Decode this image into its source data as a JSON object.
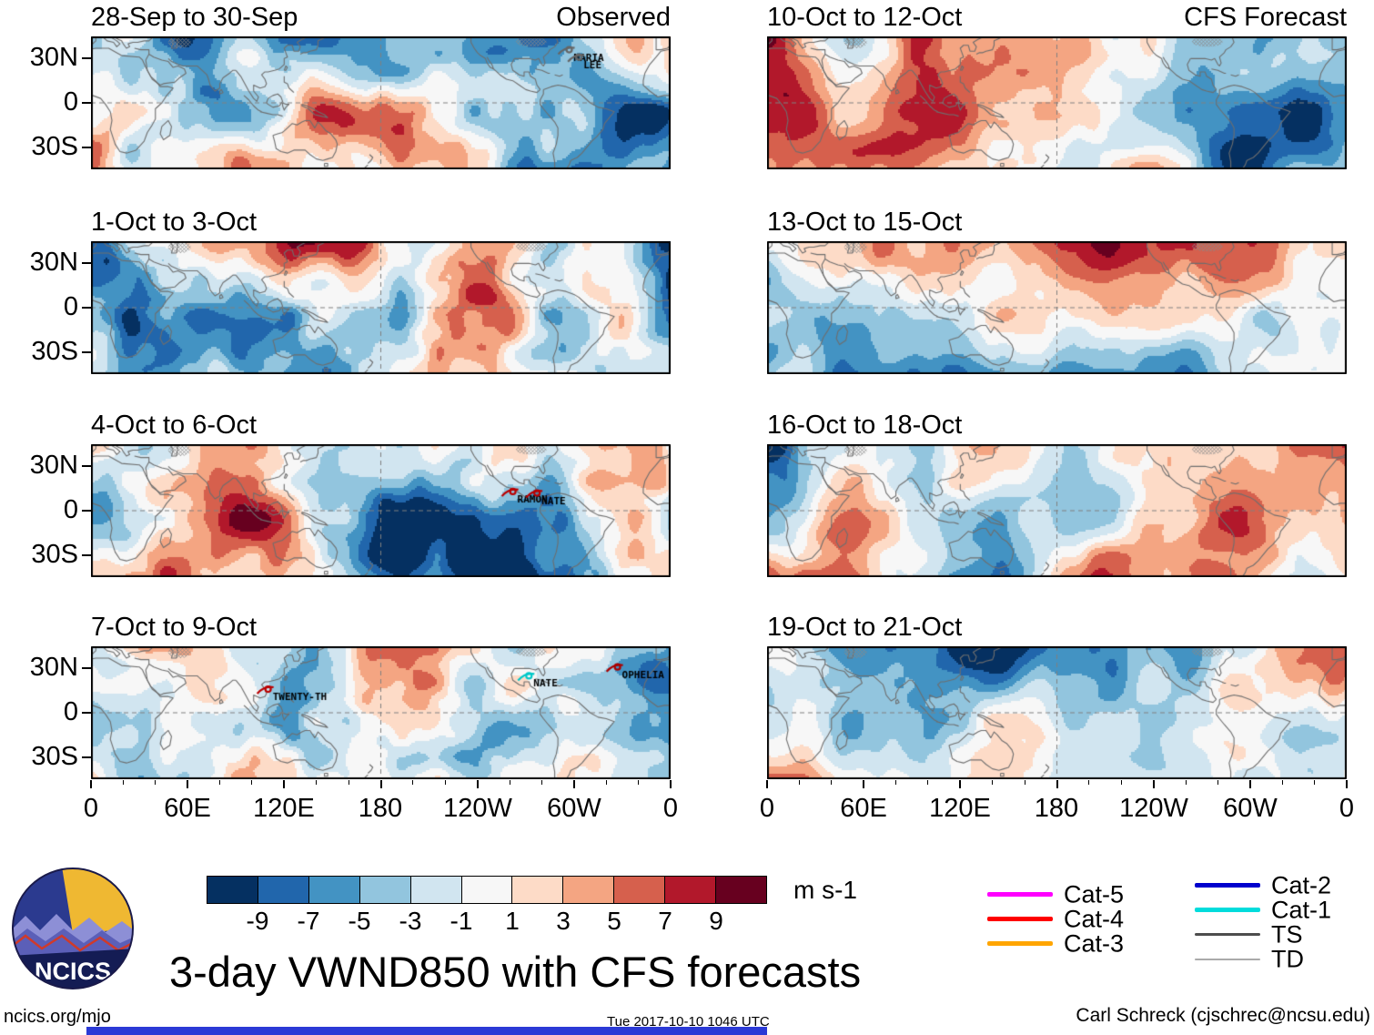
{
  "chart_data": {
    "type": "heatmap",
    "title": "3-day VWND850 with CFS forecasts",
    "x_ticks": [
      "0",
      "60E",
      "120E",
      "180",
      "120W",
      "60W",
      "0"
    ],
    "y_ticks": [
      "30N",
      "0",
      "30S"
    ],
    "grid": "dashed lines at equator and 180 longitude",
    "colorbar": {
      "units": "m s-1",
      "position": "bottom",
      "tick_labels": [
        "-9",
        "-7",
        "-5",
        "-3",
        "-1",
        "1",
        "3",
        "5",
        "7",
        "9"
      ],
      "levels": [
        -9,
        -7,
        -5,
        -3,
        -1,
        1,
        3,
        5,
        7,
        9
      ],
      "colors": [
        "#053061",
        "#2166ac",
        "#4393c3",
        "#92c5de",
        "#d1e5f0",
        "#f7f7f7",
        "#fddbc7",
        "#f4a582",
        "#d6604d",
        "#b2182b",
        "#67001f"
      ]
    },
    "panels": [
      {
        "title": "28-Sep to 30-Sep",
        "corner_label": "Observed",
        "column": "Observed",
        "storms": [
          {
            "name": "MARIA",
            "lon": 297,
            "lat": 36,
            "color": "#666666"
          },
          {
            "name": "LEE",
            "lon": 303,
            "lat": 31,
            "color": "#666666"
          }
        ]
      },
      {
        "title": "1-Oct to 3-Oct",
        "column": "Observed",
        "storms": []
      },
      {
        "title": "4-Oct to 6-Oct",
        "column": "Observed",
        "storms": [
          {
            "name": "RAMON",
            "lon": 262,
            "lat": 13,
            "color": "#bb0000"
          },
          {
            "name": "NATE",
            "lon": 277,
            "lat": 12,
            "color": "#bb0000"
          }
        ]
      },
      {
        "title": "7-Oct to 9-Oct",
        "column": "Observed",
        "storms": [
          {
            "name": "TWENTY-TH",
            "lon": 110,
            "lat": 16,
            "color": "#bb0000"
          },
          {
            "name": "NATE",
            "lon": 272,
            "lat": 25,
            "color": "#00c8c8"
          },
          {
            "name": "OPHELIA",
            "lon": 327,
            "lat": 31,
            "color": "#aa0000"
          }
        ]
      },
      {
        "title": "10-Oct to 12-Oct",
        "corner_label": "CFS Forecast",
        "column": "CFS Forecast",
        "storms": []
      },
      {
        "title": "13-Oct to 15-Oct",
        "column": "CFS Forecast",
        "storms": []
      },
      {
        "title": "16-Oct to 18-Oct",
        "column": "CFS Forecast",
        "storms": []
      },
      {
        "title": "19-Oct to 21-Oct",
        "column": "CFS Forecast",
        "storms": []
      }
    ],
    "legend_position": "bottom-right",
    "legend": [
      {
        "label": "Cat-5",
        "color": "#ff00ff",
        "weight": 5
      },
      {
        "label": "Cat-4",
        "color": "#ff0000",
        "weight": 5
      },
      {
        "label": "Cat-3",
        "color": "#ffa500",
        "weight": 5
      },
      {
        "label": "Cat-2",
        "color": "#0000cd",
        "weight": 5
      },
      {
        "label": "Cat-1",
        "color": "#00dcdc",
        "weight": 5
      },
      {
        "label": "TS",
        "color": "#4d4d4d",
        "weight": 3
      },
      {
        "label": "TD",
        "color": "#aaaaaa",
        "weight": 2
      }
    ]
  },
  "logo": {
    "text": "NCICS"
  },
  "footer": {
    "site": "ncics.org/mjo",
    "timestamp": "Tue 2017-10-10 1046 UTC",
    "credit": "Carl Schreck (cjschrec@ncsu.edu)"
  }
}
